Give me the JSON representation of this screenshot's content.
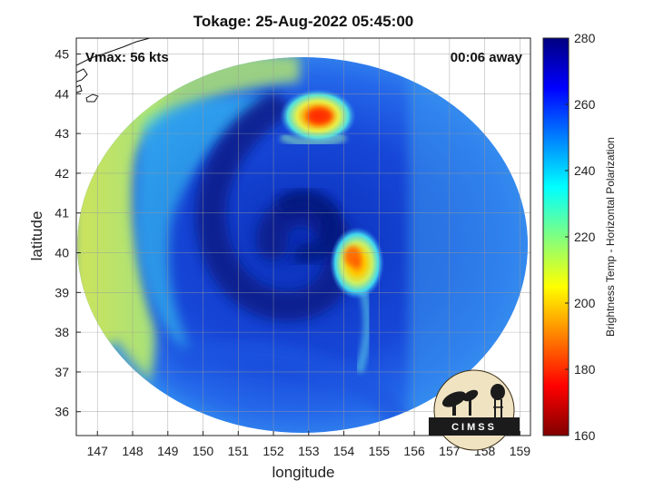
{
  "chart_data": {
    "type": "heatmap",
    "title": "Tokage: 25-Aug-2022 05:45:00",
    "xlabel": "longitude",
    "ylabel": "latitude",
    "x_ticks": [
      "147",
      "148",
      "149",
      "150",
      "151",
      "152",
      "153",
      "154",
      "155",
      "156",
      "157",
      "158",
      "159"
    ],
    "y_ticks": [
      "36",
      "37",
      "38",
      "39",
      "40",
      "41",
      "42",
      "43",
      "44",
      "45"
    ],
    "xlim": [
      146.4,
      159.3
    ],
    "ylim": [
      35.4,
      45.4
    ],
    "grid": true,
    "colorbar": {
      "label": "Brightness Temp - Horizontal Polarization",
      "ticks": [
        "160",
        "180",
        "200",
        "220",
        "240",
        "260",
        "280"
      ],
      "range": [
        160,
        280
      ],
      "colormap": "jet"
    },
    "features": [
      {
        "kind": "swath",
        "center_lon": 152.8,
        "center_lat": 40.5,
        "approx_tb": 255
      },
      {
        "kind": "cold-band",
        "region": "western edge",
        "approx_tb": 210
      },
      {
        "kind": "convection",
        "center_lon": 153.2,
        "center_lat": 43.2,
        "min_tb": 180
      },
      {
        "kind": "convection",
        "center_lon": 154.0,
        "center_lat": 39.9,
        "min_tb": 185
      },
      {
        "kind": "warm-spiral",
        "center_lon": 152.3,
        "center_lat": 40.8,
        "approx_tb": 270
      }
    ],
    "annotations": {
      "vmax": "Vmax: 56 kts",
      "time_offset": "00:06 away"
    }
  },
  "logo": {
    "text": "CIMSS"
  },
  "colors": {
    "jet_stops": [
      "#800000",
      "#ff0000",
      "#ff8000",
      "#ffff00",
      "#80ff80",
      "#00ffff",
      "#0080ff",
      "#0000ff",
      "#000080"
    ],
    "swath_base": "#1c52e6",
    "cold_band": "#d8e84a",
    "outer_ring": "#2a7af2"
  }
}
